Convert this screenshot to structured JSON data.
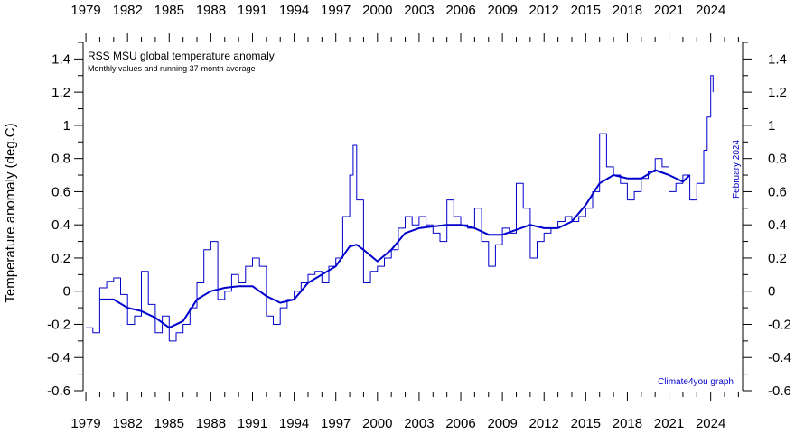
{
  "chart_data": {
    "type": "line",
    "title": "RSS MSU global temperature anomaly",
    "subtitle": "Monthly values and running 37-month average",
    "ylabel": "Temperature anomaly (deg.C)",
    "xlabel": "",
    "credit": "Climate4you graph",
    "last_month_label": "February 2024",
    "xlim": [
      1978.8,
      2026.3
    ],
    "ylim": [
      -0.6,
      1.5
    ],
    "x_ticks": [
      "1979",
      "1982",
      "1985",
      "1988",
      "1991",
      "1994",
      "1997",
      "2000",
      "2003",
      "2006",
      "2009",
      "2012",
      "2015",
      "2018",
      "2021",
      "2024"
    ],
    "y_ticks": [
      "1.4",
      "1.2",
      "1",
      "0.8",
      "0.6",
      "0.4",
      "0.2",
      "0",
      "-0.2",
      "-0.4",
      "-0.6"
    ],
    "grid": false,
    "colors": {
      "monthly": "#0000cc",
      "running_mean": "#0000cc",
      "credit": "#0000cc"
    },
    "series": [
      {
        "name": "Monthly values",
        "style": "step",
        "x": [
          1979.0,
          1979.5,
          1980.0,
          1980.5,
          1981.0,
          1981.5,
          1982.0,
          1982.5,
          1983.0,
          1983.5,
          1984.0,
          1984.5,
          1985.0,
          1985.5,
          1986.0,
          1986.5,
          1987.0,
          1987.5,
          1988.0,
          1988.5,
          1989.0,
          1989.5,
          1990.0,
          1990.5,
          1991.0,
          1991.5,
          1992.0,
          1992.5,
          1993.0,
          1993.5,
          1994.0,
          1994.5,
          1995.0,
          1995.5,
          1996.0,
          1996.5,
          1997.0,
          1997.5,
          1998.0,
          1998.25,
          1998.5,
          1999.0,
          1999.5,
          2000.0,
          2000.5,
          2001.0,
          2001.5,
          2002.0,
          2002.5,
          2003.0,
          2003.5,
          2004.0,
          2004.5,
          2005.0,
          2005.5,
          2006.0,
          2006.5,
          2007.0,
          2007.5,
          2008.0,
          2008.5,
          2009.0,
          2009.5,
          2010.0,
          2010.5,
          2011.0,
          2011.5,
          2012.0,
          2012.5,
          2013.0,
          2013.5,
          2014.0,
          2014.5,
          2015.0,
          2015.5,
          2016.0,
          2016.5,
          2017.0,
          2017.5,
          2018.0,
          2018.5,
          2019.0,
          2019.5,
          2020.0,
          2020.5,
          2021.0,
          2021.5,
          2022.0,
          2022.5,
          2023.0,
          2023.5,
          2023.75,
          2024.0,
          2024.17
        ],
        "values": [
          -0.22,
          -0.25,
          0.02,
          0.06,
          0.08,
          -0.02,
          -0.2,
          -0.15,
          0.12,
          -0.08,
          -0.25,
          -0.15,
          -0.3,
          -0.25,
          -0.2,
          -0.1,
          0.05,
          0.25,
          0.3,
          -0.05,
          0.0,
          0.1,
          0.05,
          0.15,
          0.2,
          0.15,
          -0.15,
          -0.2,
          -0.1,
          -0.05,
          0.0,
          0.05,
          0.1,
          0.12,
          0.05,
          0.15,
          0.2,
          0.45,
          0.7,
          0.88,
          0.55,
          0.05,
          0.12,
          0.15,
          0.2,
          0.25,
          0.38,
          0.45,
          0.4,
          0.45,
          0.4,
          0.35,
          0.3,
          0.55,
          0.45,
          0.4,
          0.38,
          0.5,
          0.3,
          0.15,
          0.28,
          0.38,
          0.35,
          0.65,
          0.5,
          0.2,
          0.3,
          0.35,
          0.38,
          0.42,
          0.45,
          0.42,
          0.45,
          0.5,
          0.6,
          0.95,
          0.75,
          0.7,
          0.65,
          0.55,
          0.6,
          0.68,
          0.72,
          0.8,
          0.75,
          0.6,
          0.65,
          0.7,
          0.55,
          0.65,
          0.85,
          1.05,
          1.3,
          1.2
        ]
      },
      {
        "name": "Running 37-month average",
        "style": "line",
        "x": [
          1980.0,
          1981.0,
          1982.0,
          1983.0,
          1984.0,
          1985.0,
          1986.0,
          1987.0,
          1988.0,
          1989.0,
          1990.0,
          1991.0,
          1992.0,
          1993.0,
          1994.0,
          1995.0,
          1996.0,
          1997.0,
          1998.0,
          1998.5,
          1999.0,
          2000.0,
          2001.0,
          2002.0,
          2003.0,
          2004.0,
          2005.0,
          2006.0,
          2007.0,
          2008.0,
          2009.0,
          2010.0,
          2011.0,
          2012.0,
          2013.0,
          2014.0,
          2015.0,
          2016.0,
          2017.0,
          2018.0,
          2019.0,
          2020.0,
          2021.0,
          2022.0,
          2022.5
        ],
        "values": [
          -0.05,
          -0.05,
          -0.1,
          -0.12,
          -0.16,
          -0.22,
          -0.18,
          -0.05,
          0.0,
          0.02,
          0.03,
          0.03,
          -0.03,
          -0.07,
          -0.05,
          0.05,
          0.1,
          0.15,
          0.27,
          0.28,
          0.25,
          0.18,
          0.25,
          0.35,
          0.38,
          0.39,
          0.4,
          0.4,
          0.38,
          0.34,
          0.34,
          0.37,
          0.4,
          0.38,
          0.38,
          0.42,
          0.52,
          0.65,
          0.7,
          0.68,
          0.68,
          0.73,
          0.7,
          0.66,
          0.7
        ]
      }
    ]
  }
}
